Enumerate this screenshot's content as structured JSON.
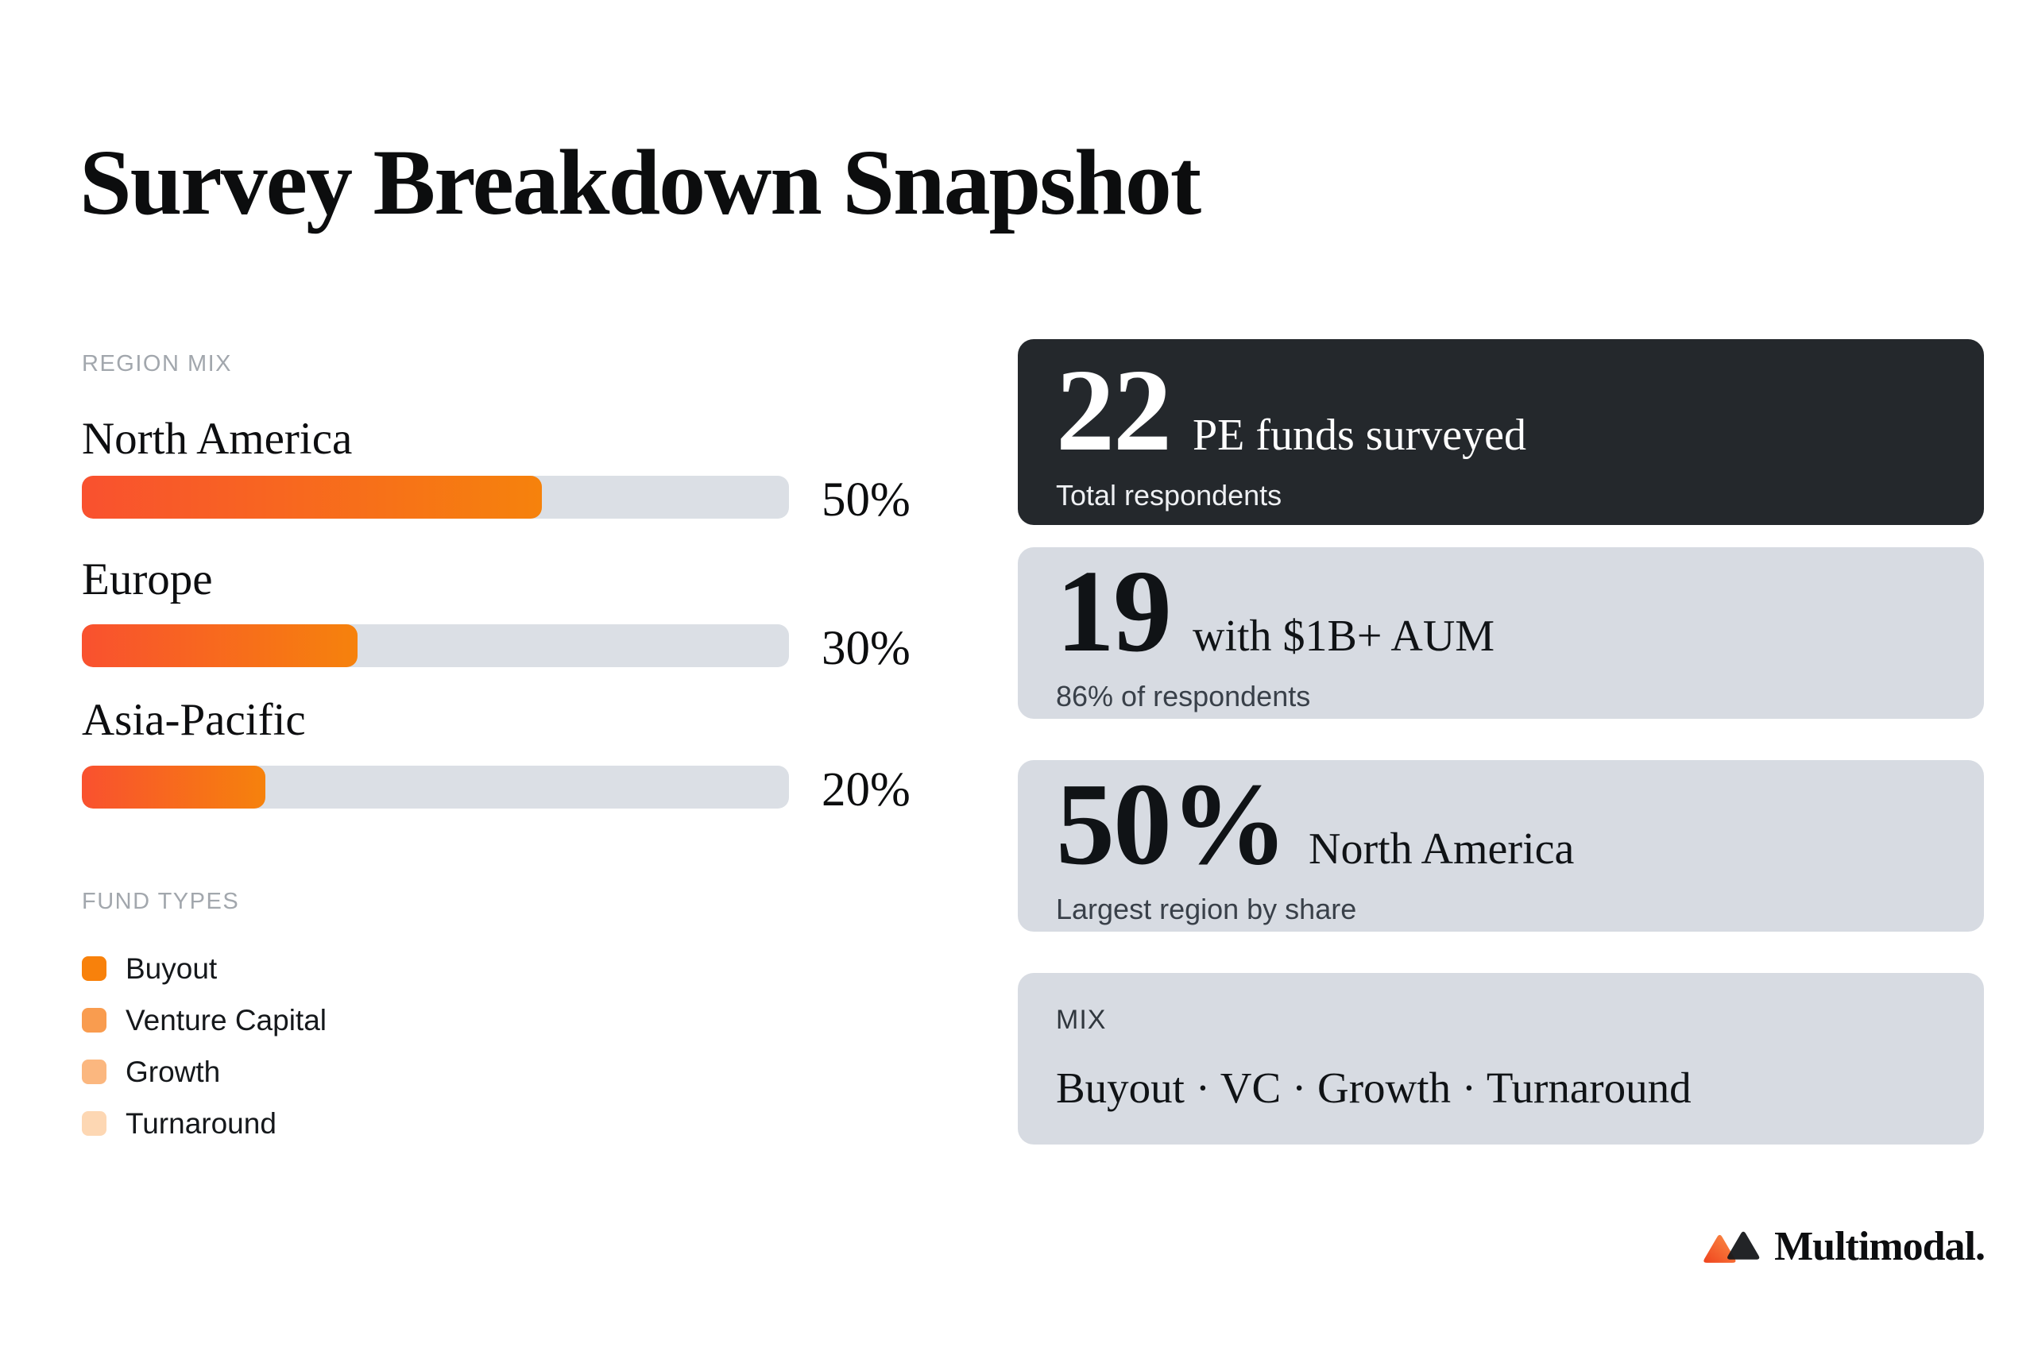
{
  "header": {
    "title": "Survey Breakdown Snapshot"
  },
  "region_mix": {
    "label": "REGION MIX",
    "rows": [
      {
        "name": "North America",
        "value": 50,
        "value_label": "50%",
        "fill_width": "65%"
      },
      {
        "name": "Europe",
        "value": 30,
        "value_label": "30%",
        "fill_width": "39%"
      },
      {
        "name": "Asia-Pacific",
        "value": 20,
        "value_label": "20%",
        "fill_width": "26%"
      }
    ]
  },
  "fund_types": {
    "label": "FUND TYPES",
    "items": [
      {
        "label": "Buyout",
        "color": "#f8810b"
      },
      {
        "label": "Venture Capital",
        "color": "#f99c4f"
      },
      {
        "label": "Growth",
        "color": "#fbb77f"
      },
      {
        "label": "Turnaround",
        "color": "#fdd7b3"
      }
    ]
  },
  "stat_cards": [
    {
      "number": "22",
      "caption": "PE funds surveyed",
      "sub": "Total respondents"
    },
    {
      "number": "19",
      "caption": "with $1B+ AUM",
      "sub": "86% of respondents"
    },
    {
      "number": "50%",
      "caption": "North America",
      "sub": "Largest region by share"
    },
    {
      "label": "MIX",
      "line": "Buyout · VC · Growth · Turnaround"
    }
  ],
  "logo": {
    "text": "Multimodal."
  },
  "colors": {
    "bar_gradient_from": "#f9512f",
    "bar_gradient_to": "#f6820c",
    "bar_track": "#dbdfe5",
    "card_light": "#d7dbe2",
    "card_dark": "#24282c"
  },
  "chart_data": {
    "type": "bar",
    "orientation": "horizontal",
    "title": "Survey Breakdown Snapshot",
    "section": "REGION MIX",
    "categories": [
      "North America",
      "Europe",
      "Asia-Pacific"
    ],
    "values": [
      50,
      30,
      20
    ],
    "unit": "%",
    "xlim": [
      0,
      100
    ],
    "grid": false,
    "data_labels": [
      "50%",
      "30%",
      "20%"
    ],
    "bar_colors": [
      "#f9512f",
      "#f6820c"
    ],
    "legend": {
      "title": "FUND TYPES",
      "entries": [
        "Buyout",
        "Venture Capital",
        "Growth",
        "Turnaround"
      ],
      "position": "bottom-left"
    },
    "stat_callouts": [
      {
        "value": "22",
        "label": "PE funds surveyed",
        "sublabel": "Total respondents"
      },
      {
        "value": "19",
        "label": "with $1B+ AUM",
        "sublabel": "86% of respondents"
      },
      {
        "value": "50%",
        "label": "North America",
        "sublabel": "Largest region by share"
      },
      {
        "value": "Buyout · VC · Growth · Turnaround",
        "label": "MIX"
      }
    ]
  }
}
